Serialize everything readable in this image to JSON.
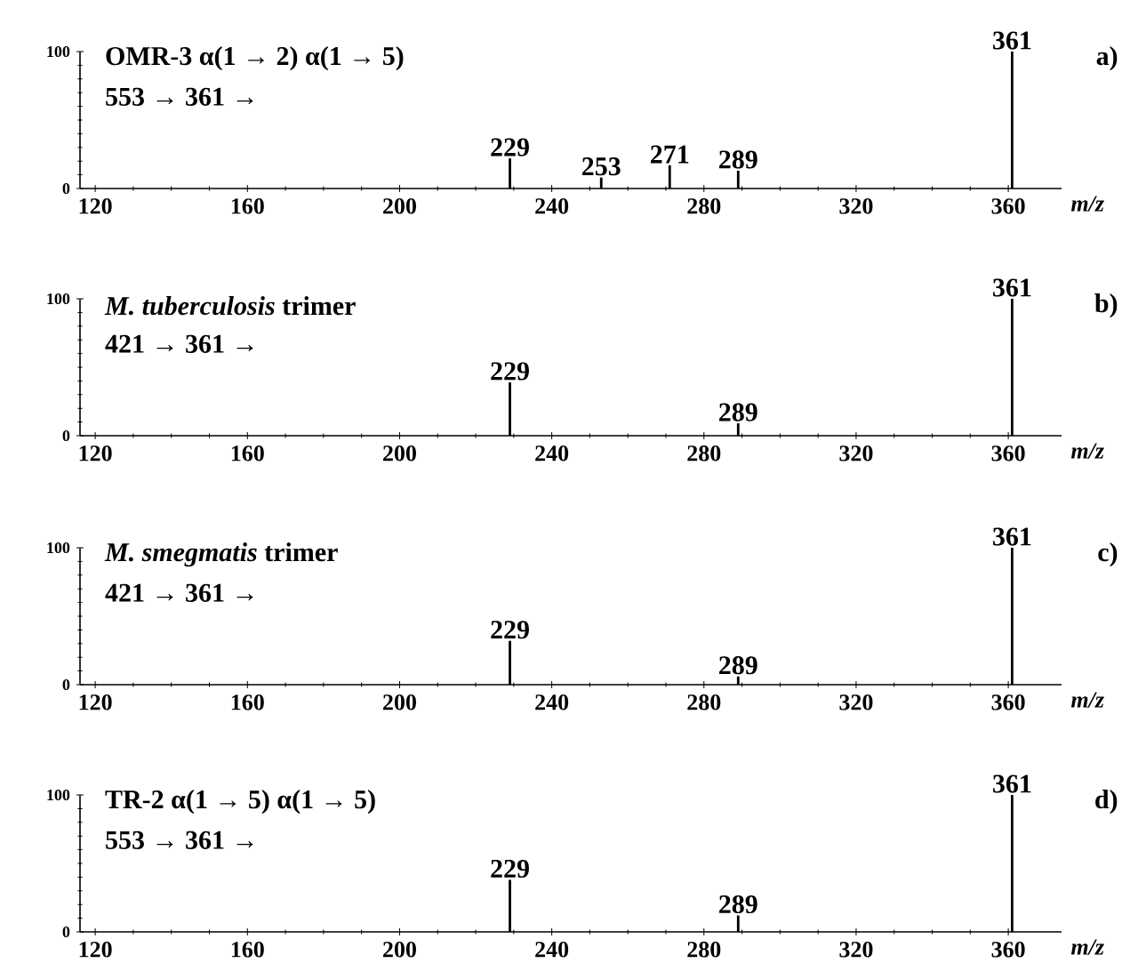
{
  "chart_data": [
    {
      "type": "bar",
      "title": "OMR-3 α(1 → 2) α(1 → 5)",
      "subtitle": "553 → 361 →",
      "xlabel": "m/z",
      "color": "#000000",
      "x": [
        229,
        253,
        271,
        289,
        361
      ],
      "values": [
        22,
        8,
        17,
        13,
        100
      ],
      "xlim": [
        116,
        374
      ],
      "xticks": [
        120,
        160,
        200,
        240,
        280,
        320,
        360
      ],
      "ylim": [
        0,
        100
      ],
      "yticks": [
        0,
        100
      ],
      "annotations": [
        "a)",
        {
          "text": "229",
          "x": 229,
          "y": 22
        },
        {
          "text": "253",
          "x": 253,
          "y": 8
        },
        {
          "text": "271",
          "x": 271,
          "y": 17
        },
        {
          "text": "289",
          "x": 289,
          "y": 13
        },
        {
          "text": "361",
          "x": 361,
          "y": 100
        }
      ]
    },
    {
      "type": "bar",
      "title": "*M. tuberculosis* trimer",
      "subtitle": "421 → 361 →",
      "xlabel": "m/z",
      "color": "#000000",
      "x": [
        229,
        289,
        361
      ],
      "values": [
        39,
        9,
        100
      ],
      "xlim": [
        116,
        374
      ],
      "xticks": [
        120,
        160,
        200,
        240,
        280,
        320,
        360
      ],
      "ylim": [
        0,
        100
      ],
      "yticks": [
        0,
        100
      ],
      "annotations": [
        "b)",
        {
          "text": "229",
          "x": 229,
          "y": 39
        },
        {
          "text": "289",
          "x": 289,
          "y": 9
        },
        {
          "text": "361",
          "x": 361,
          "y": 100
        }
      ]
    },
    {
      "type": "bar",
      "title": "*M. smegmatis* trimer",
      "subtitle": "421 → 361 →",
      "xlabel": "m/z",
      "color": "#000000",
      "x": [
        229,
        289,
        361
      ],
      "values": [
        32,
        6,
        100
      ],
      "xlim": [
        116,
        374
      ],
      "xticks": [
        120,
        160,
        200,
        240,
        280,
        320,
        360
      ],
      "ylim": [
        0,
        100
      ],
      "yticks": [
        0,
        100
      ],
      "annotations": [
        "c)",
        {
          "text": "229",
          "x": 229,
          "y": 32
        },
        {
          "text": "289",
          "x": 289,
          "y": 6
        },
        {
          "text": "361",
          "x": 361,
          "y": 100
        }
      ]
    },
    {
      "type": "bar",
      "title": "TR-2 α(1 → 5) α(1 → 5)",
      "subtitle": "553 → 361 →",
      "xlabel": "m/z",
      "color": "#000000",
      "x": [
        229,
        289,
        361
      ],
      "values": [
        38,
        12,
        100
      ],
      "xlim": [
        116,
        374
      ],
      "xticks": [
        120,
        160,
        200,
        240,
        280,
        320,
        360
      ],
      "ylim": [
        0,
        100
      ],
      "yticks": [
        0,
        100
      ],
      "annotations": [
        "d)",
        {
          "text": "229",
          "x": 229,
          "y": 38
        },
        {
          "text": "289",
          "x": 289,
          "y": 12
        },
        {
          "text": "361",
          "x": 361,
          "y": 100
        }
      ]
    }
  ]
}
